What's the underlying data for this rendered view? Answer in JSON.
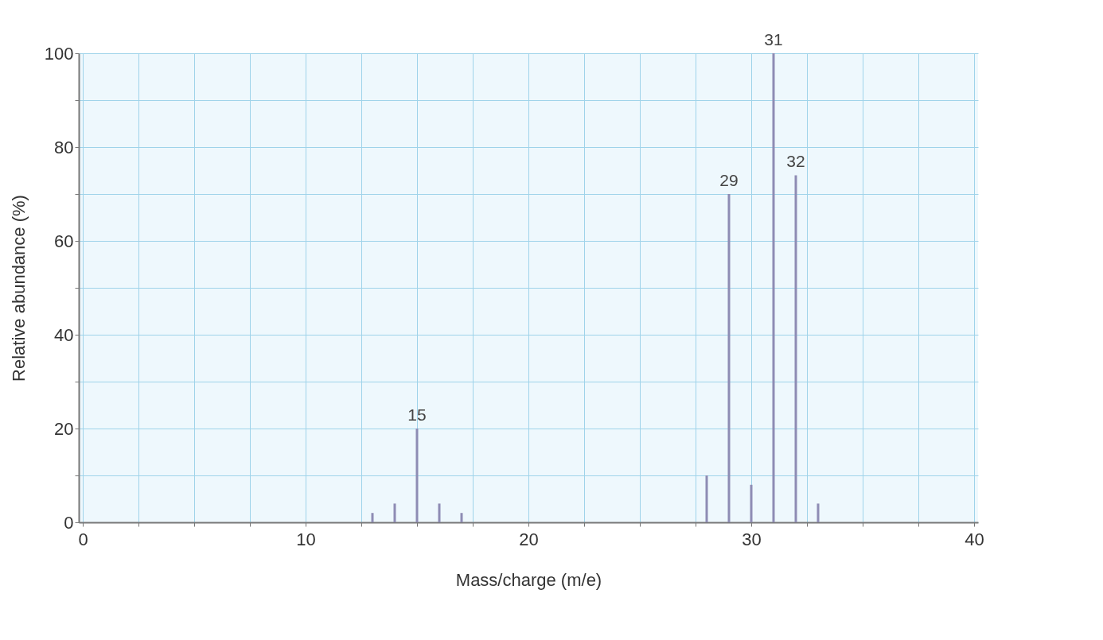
{
  "chart_data": {
    "type": "bar",
    "xlabel": "Mass/charge (m/e)",
    "ylabel": "Relative abundance (%)",
    "x": [
      13,
      14,
      15,
      16,
      17,
      28,
      29,
      30,
      31,
      32,
      33
    ],
    "values": [
      2,
      4,
      20,
      4,
      2,
      10,
      70,
      8,
      100,
      74,
      4
    ],
    "annotations": [
      {
        "text": "15",
        "x": 15,
        "y": 20
      },
      {
        "text": "29",
        "x": 29,
        "y": 70
      },
      {
        "text": "31",
        "x": 31,
        "y": 100
      },
      {
        "text": "32",
        "x": 32,
        "y": 74
      }
    ],
    "color": "#8e8cb4",
    "xlim": [
      0,
      40
    ],
    "xticks": [
      0,
      {
        "value": 2.5,
        "label": null
      },
      {
        "value": 5,
        "label": null
      },
      {
        "value": 7.5,
        "label": null
      },
      10,
      {
        "value": 12.5,
        "label": null
      },
      {
        "value": 15,
        "label": null
      },
      {
        "value": 17.5,
        "label": null
      },
      20,
      {
        "value": 22.5,
        "label": null
      },
      {
        "value": 25,
        "label": null
      },
      {
        "value": 27.5,
        "label": null
      },
      30,
      {
        "value": 32.5,
        "label": null
      },
      {
        "value": 35,
        "label": null
      },
      {
        "value": 37.5,
        "label": null
      },
      40
    ],
    "ylim": [
      0,
      100
    ],
    "yticks": [
      0,
      {
        "value": 10,
        "label": null
      },
      20,
      {
        "value": 30,
        "label": null
      },
      40,
      {
        "value": 50,
        "label": null
      },
      60,
      {
        "value": 70,
        "label": null
      },
      80,
      {
        "value": 90,
        "label": null
      },
      100
    ],
    "grid": true
  }
}
